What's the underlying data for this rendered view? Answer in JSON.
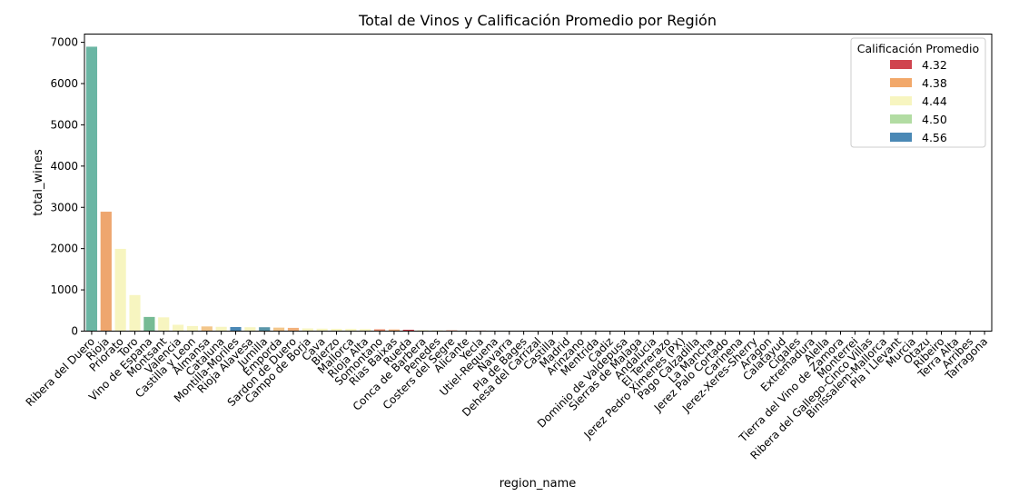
{
  "chart_data": {
    "type": "bar",
    "title": "Total de Vinos y Calificación Promedio por Región",
    "xlabel": "region_name",
    "ylabel": "total_wines",
    "ylim": [
      0,
      7200
    ],
    "yticks": [
      0,
      1000,
      2000,
      3000,
      4000,
      5000,
      6000,
      7000
    ],
    "grid": false,
    "legend": {
      "title": "Calificación Promedio",
      "placement": "top-right",
      "entries": [
        {
          "label": "4.32",
          "color": "#d0444f"
        },
        {
          "label": "4.38",
          "color": "#f2a86a"
        },
        {
          "label": "4.44",
          "color": "#f7f5c0"
        },
        {
          "label": "4.50",
          "color": "#b2dca3"
        },
        {
          "label": "4.56",
          "color": "#4a88b5"
        }
      ]
    },
    "categories": [
      "Ribera del Duero",
      "Rioja",
      "Priorato",
      "Toro",
      "Vino de Espana",
      "Montsant",
      "Valencia",
      "Castilla y Leon",
      "Almansa",
      "Cataluna",
      "Montilla-Moriles",
      "Rioja Alavesa",
      "Jumilla",
      "Emporda",
      "Sardon de Duero",
      "Campo de Borja",
      "Cava",
      "Bierzo",
      "Mallorca",
      "Rioja Alta",
      "Somontano",
      "Rias Baixas",
      "Rueda",
      "Conca de Barbera",
      "Penedes",
      "Costers del Segre",
      "Alicante",
      "Yecla",
      "Utiel-Requena",
      "Navarra",
      "Pla de Bages",
      "Dehesa del Carrizal",
      "Castilla",
      "Madrid",
      "Arinzano",
      "Mentrida",
      "Cadiz",
      "Dominio de Valdepusa",
      "Sierras de Malaga",
      "Andalucia",
      "El Terrerazo",
      "Jerez Pedro Ximenes (PX)",
      "Pago Calzadilla",
      "La Mancha",
      "Jerez Palo Cortado",
      "Carinena",
      "Jerez-Xeres-Sherry",
      "Aragon",
      "Calatayud",
      "Cigales",
      "Extremadura",
      "Alella",
      "Tierra del Vino de Zamora",
      "Monterrei",
      "Ribera del Gallego-Cinco Villas",
      "Binissalem-Mallorca",
      "Pla i Llevant",
      "Murcia",
      "Otazu",
      "Ribeiro",
      "Terra Alta",
      "Arribes",
      "Tarragona"
    ],
    "values": [
      6900,
      2900,
      2000,
      880,
      350,
      340,
      160,
      130,
      120,
      110,
      105,
      100,
      100,
      90,
      85,
      70,
      65,
      60,
      58,
      55,
      50,
      45,
      40,
      30,
      25,
      25,
      20,
      20,
      15,
      14,
      12,
      12,
      11,
      10,
      10,
      9,
      9,
      8,
      8,
      7,
      7,
      6,
      6,
      6,
      5,
      5,
      5,
      4,
      4,
      4,
      4,
      4,
      3,
      3,
      3,
      3,
      3,
      3,
      2,
      2,
      2,
      2,
      1
    ],
    "colors": [
      "#6bb6a4",
      "#eea66e",
      "#f7f5c0",
      "#f7f5c0",
      "#76bb95",
      "#f7f5c0",
      "#f7f5c0",
      "#f7f5c0",
      "#f3c68a",
      "#f7f5c0",
      "#4a88b5",
      "#f7f5c0",
      "#5a96a9",
      "#f3c68a",
      "#f2b07a",
      "#f7f5c0",
      "#f7f5c0",
      "#f7f5c0",
      "#f7f5c0",
      "#f7f5c0",
      "#e98a6c",
      "#f2b07a",
      "#d0444f",
      "#f7f5c0",
      "#f7f5c0",
      "#e98a6c",
      "#f2b07a",
      "#e98a6c",
      "#f7f5c0",
      "#f7f5c0",
      "#f7f5c0",
      "#f7f5c0",
      "#f7f5c0",
      "#f7f5c0",
      "#f7f5c0",
      "#f7f5c0",
      "#f7f5c0",
      "#f7f5c0",
      "#f7f5c0",
      "#f7f5c0",
      "#f7f5c0",
      "#f7f5c0",
      "#f7f5c0",
      "#f7f5c0",
      "#f7f5c0",
      "#f7f5c0",
      "#f7f5c0",
      "#f7f5c0",
      "#f7f5c0",
      "#f7f5c0",
      "#f7f5c0",
      "#f7f5c0",
      "#f7f5c0",
      "#f7f5c0",
      "#f7f5c0",
      "#f7f5c0",
      "#f7f5c0",
      "#f7f5c0",
      "#f7f5c0",
      "#f7f5c0",
      "#f7f5c0",
      "#f7f5c0",
      "#f7f5c0"
    ]
  }
}
